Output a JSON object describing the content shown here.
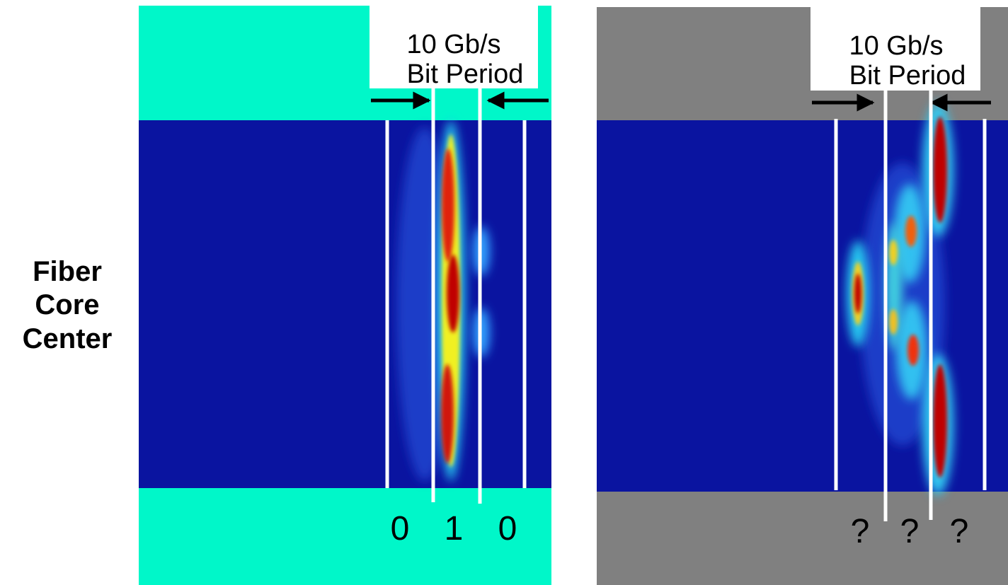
{
  "side_label": [
    "Fiber",
    "Core",
    "Center"
  ],
  "panels": [
    {
      "heading": [
        "10 Gb/s",
        "Bit Period"
      ],
      "bits": [
        "0",
        "1",
        "0"
      ]
    },
    {
      "heading": [
        "10 Gb/s",
        "Bit Period"
      ],
      "bits": [
        "?",
        "?",
        "?"
      ]
    }
  ]
}
